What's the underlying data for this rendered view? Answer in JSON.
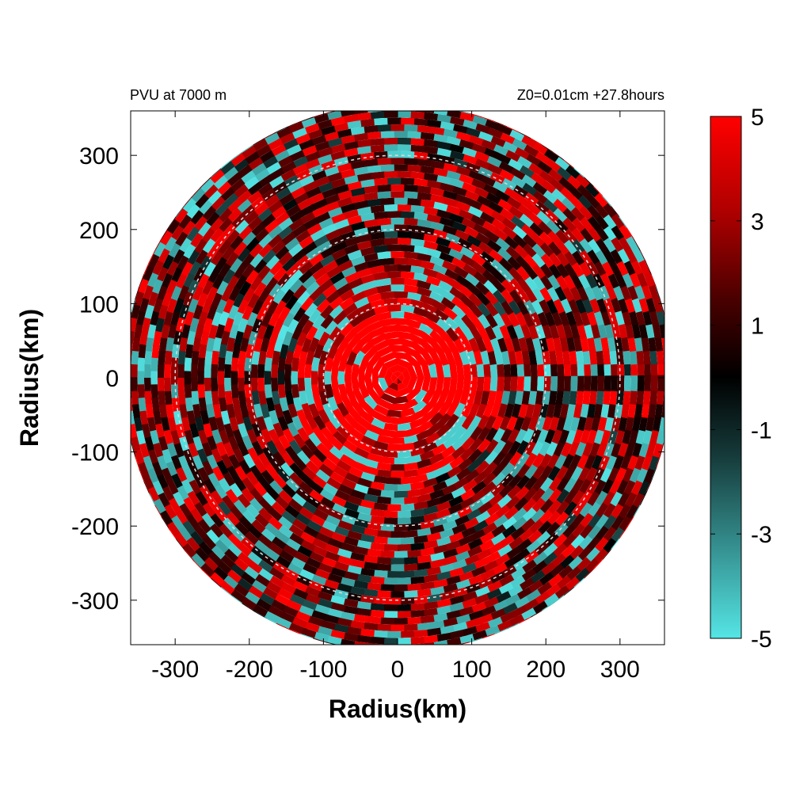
{
  "chart_data": {
    "type": "heatmap",
    "subtitle_left": "PVU at  7000 m",
    "subtitle_right": "Z0=0.01cm  +27.8hours",
    "xlabel": "Radius(km)",
    "ylabel": "Radius(km)",
    "xlim": [
      -360,
      360
    ],
    "ylim": [
      -360,
      360
    ],
    "x_ticks": [
      -300,
      -200,
      -100,
      0,
      100,
      200,
      300
    ],
    "y_ticks": [
      300,
      200,
      100,
      0,
      -100,
      -200,
      -300
    ],
    "x_tick_labels": [
      "-300",
      "-200",
      "-100",
      "0",
      "100",
      "200",
      "300"
    ],
    "y_tick_labels": [
      "300",
      "200",
      "100",
      "0",
      "-100",
      "-200",
      "-300"
    ],
    "reference_circles_km": [
      100,
      200,
      300
    ],
    "domain_radius_km": 370,
    "colorbar": {
      "min": -5,
      "max": 5,
      "ticks": [
        5,
        3,
        1,
        -1,
        -3,
        -5
      ],
      "tick_labels": [
        "5",
        "3",
        "1",
        "-1",
        "-3",
        "-5"
      ],
      "colors": [
        "#55e5e5",
        "#000000",
        "#ff0000"
      ]
    },
    "field_description": {
      "core_radius_km": 90,
      "core_value": 5
    }
  }
}
